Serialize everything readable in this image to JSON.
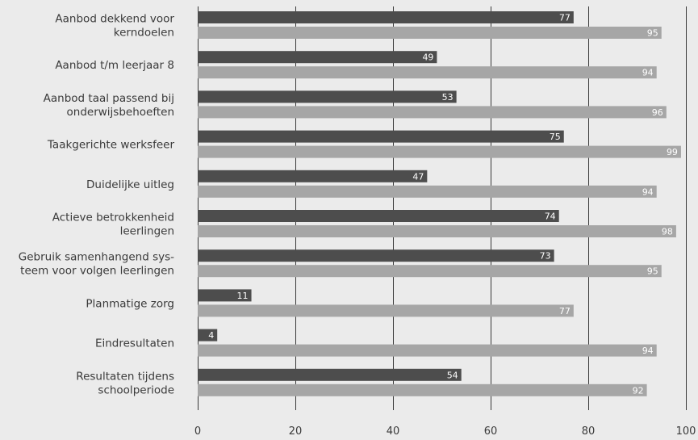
{
  "chart_data": {
    "type": "bar",
    "orientation": "horizontal",
    "categories": [
      [
        "Aanbod dekkend voor",
        "kerndoelen"
      ],
      [
        "Aanbod t/m leerjaar 8"
      ],
      [
        "Aanbod taal passend  bij",
        "onderwijsbehoeften"
      ],
      [
        "Taakgerichte werksfeer"
      ],
      [
        "Duidelijke uitleg"
      ],
      [
        "Actieve betrokkenheid",
        "leerlingen"
      ],
      [
        "Gebruik samenhangend sys-",
        "teem voor volgen leerlingen"
      ],
      [
        "Planmatige zorg"
      ],
      [
        "Eindresultaten"
      ],
      [
        "Resultaten tijdens",
        "schoolperiode"
      ]
    ],
    "series": [
      {
        "color": "#4d4d4d",
        "values": [
          77,
          49,
          53,
          75,
          47,
          74,
          73,
          11,
          4,
          54
        ]
      },
      {
        "color": "#a6a6a6",
        "values": [
          95,
          94,
          96,
          99,
          94,
          98,
          95,
          77,
          94,
          92
        ]
      }
    ],
    "xlim": [
      0,
      100
    ],
    "xticks": [
      "0",
      "20",
      "40",
      "60",
      "80",
      "100"
    ],
    "grid": true,
    "legend": "none",
    "value_labels": true
  }
}
